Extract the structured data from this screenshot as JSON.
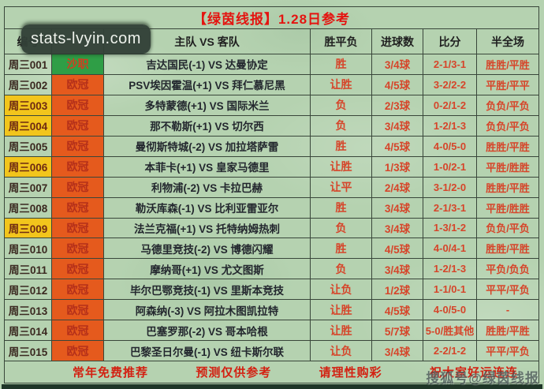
{
  "title": "【绿茵线报】1.28日参考",
  "table": {
    "headers": [
      "编号",
      "",
      "主队 VS 客队",
      "胜平负",
      "进球数",
      "比分",
      "半全场"
    ],
    "rows": [
      {
        "id": "周三001",
        "id_highlight": false,
        "league": "沙职",
        "league_color": "green",
        "match": "吉达国民(-1) VS 达曼协定",
        "wdl": "胜",
        "goals": "3/4球",
        "score": "2-1/3-1",
        "half_full": "胜胜/平胜"
      },
      {
        "id": "周三002",
        "id_highlight": false,
        "league": "欧冠",
        "league_color": "orange",
        "match": "PSV埃因霍温(+1) VS 拜仁慕尼黑",
        "wdl": "让胜",
        "goals": "4/5球",
        "score": "3-2/2-2",
        "half_full": "平胜/平平"
      },
      {
        "id": "周三003",
        "id_highlight": true,
        "league": "欧冠",
        "league_color": "orange",
        "match": "多特蒙德(+1) VS 国际米兰",
        "wdl": "负",
        "goals": "2/3球",
        "score": "0-2/1-2",
        "half_full": "负负/平负"
      },
      {
        "id": "周三004",
        "id_highlight": true,
        "league": "欧冠",
        "league_color": "orange",
        "match": "那不勒斯(+1) VS 切尔西",
        "wdl": "负",
        "goals": "3/4球",
        "score": "1-2/1-3",
        "half_full": "负负/平负"
      },
      {
        "id": "周三005",
        "id_highlight": false,
        "league": "欧冠",
        "league_color": "orange",
        "match": "曼彻斯特城(-2) VS 加拉塔萨雷",
        "wdl": "胜",
        "goals": "4/5球",
        "score": "4-0/5-0",
        "half_full": "胜胜/平胜"
      },
      {
        "id": "周三006",
        "id_highlight": true,
        "league": "欧冠",
        "league_color": "orange",
        "match": "本菲卡(+1) VS 皇家马德里",
        "wdl": "让胜",
        "goals": "1/3球",
        "score": "1-0/2-1",
        "half_full": "平胜/胜胜"
      },
      {
        "id": "周三007",
        "id_highlight": false,
        "league": "欧冠",
        "league_color": "orange",
        "match": "利物浦(-2) VS 卡拉巴赫",
        "wdl": "让平",
        "goals": "2/4球",
        "score": "3-1/2-0",
        "half_full": "胜胜/平胜"
      },
      {
        "id": "周三008",
        "id_highlight": false,
        "league": "欧冠",
        "league_color": "orange",
        "match": "勒沃库森(-1) VS 比利亚雷亚尔",
        "wdl": "胜",
        "goals": "3/4球",
        "score": "2-1/3-1",
        "half_full": "平胜/胜胜"
      },
      {
        "id": "周三009",
        "id_highlight": true,
        "league": "欧冠",
        "league_color": "orange",
        "match": "法兰克福(+1) VS 托特纳姆热刺",
        "wdl": "负",
        "goals": "3/4球",
        "score": "1-3/1-2",
        "half_full": "负负/平负"
      },
      {
        "id": "周三010",
        "id_highlight": false,
        "league": "欧冠",
        "league_color": "orange",
        "match": "马德里竞技(-2) VS 博德闪耀",
        "wdl": "胜",
        "goals": "4/5球",
        "score": "4-0/4-1",
        "half_full": "胜胜/平胜"
      },
      {
        "id": "周三011",
        "id_highlight": false,
        "league": "欧冠",
        "league_color": "orange",
        "match": "摩纳哥(+1) VS 尤文图斯",
        "wdl": "负",
        "goals": "3/4球",
        "score": "1-2/1-3",
        "half_full": "平负/负负"
      },
      {
        "id": "周三012",
        "id_highlight": false,
        "league": "欧冠",
        "league_color": "orange",
        "match": "毕尔巴鄂竞技(-1) VS 里斯本竞技",
        "wdl": "让负",
        "goals": "1/2球",
        "score": "1-1/0-1",
        "half_full": "平平/平负"
      },
      {
        "id": "周三013",
        "id_highlight": false,
        "league": "欧冠",
        "league_color": "orange",
        "match": "阿森纳(-3) VS 阿拉木图凯拉特",
        "wdl": "让胜",
        "goals": "4/5球",
        "score": "4-0/5-0",
        "half_full": "-"
      },
      {
        "id": "周三014",
        "id_highlight": false,
        "league": "欧冠",
        "league_color": "orange",
        "match": "巴塞罗那(-2) VS 哥本哈根",
        "wdl": "让胜",
        "goals": "5/7球",
        "score": "5-0/胜其他",
        "half_full": "胜胜/平胜"
      },
      {
        "id": "周三015",
        "id_highlight": false,
        "league": "欧冠",
        "league_color": "orange",
        "match": "巴黎圣日尔曼(-1) VS 纽卡斯尔联",
        "wdl": "让负",
        "goals": "3/4球",
        "score": "2-2/1-2",
        "half_full": "平平/平负"
      }
    ]
  },
  "footer": {
    "items": [
      "常年免费推荐",
      "预测仅供参考",
      "请理性购彩",
      "祝大家好运连连"
    ]
  },
  "watermarks": {
    "badge": "stats-lvyin.com",
    "bottom_right": "搜狐号@绿茵线报"
  },
  "colors": {
    "background_green": "#b5d2b0",
    "title_red": "#e41410",
    "value_red": "#d6452a",
    "highlight_yellow": "#f2c51c",
    "league_orange": "#e55a1d",
    "league_green": "#2f9e46",
    "grid_line": "#39463a"
  }
}
